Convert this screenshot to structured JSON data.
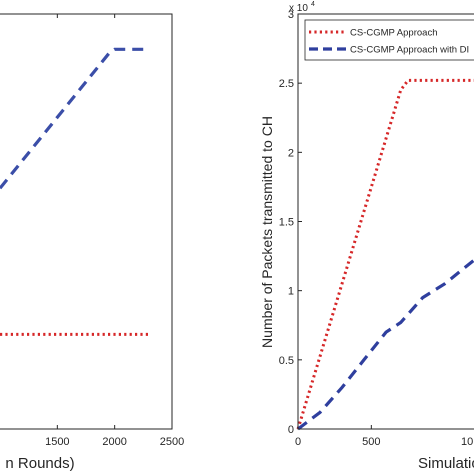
{
  "chart_data": [
    {
      "type": "line",
      "xlabel": "n Rounds)",
      "ylabel": "",
      "xlim": [
        1000,
        2500
      ],
      "ylim": [
        0,
        1
      ],
      "xticks": [
        1500,
        2000,
        2500
      ],
      "grid": false,
      "series": [
        {
          "color": "#3b4ea8",
          "style": "dashed",
          "x": [
            1000,
            1950,
            2000,
            2300
          ],
          "y": [
            0.58,
            0.905,
            0.915,
            0.915
          ]
        },
        {
          "color": "#d62728",
          "style": "dotted",
          "x": [
            1000,
            2300
          ],
          "y": [
            0.228,
            0.228
          ]
        }
      ]
    },
    {
      "type": "line",
      "xlabel": "Simulatio",
      "ylabel": "Number of Packets transmitted to CH",
      "xlim": [
        0,
        1200
      ],
      "ylim": [
        0,
        3
      ],
      "yticks": [
        0,
        0.5,
        1,
        1.5,
        2,
        2.5,
        3
      ],
      "yticklabels": [
        "0",
        "0.5",
        "1",
        "1.5",
        "2",
        "2.5",
        "3"
      ],
      "xticks": [
        0,
        500
      ],
      "xticklabels": [
        "0",
        "500"
      ],
      "extra_xtick_label": "10",
      "y_exponent_base": "x 10",
      "y_exponent_power": "4",
      "legend_position": "top-right",
      "grid": false,
      "series": [
        {
          "name": "CS-CGMP Approach",
          "color": "#d62728",
          "style": "dotted",
          "x": [
            0,
            700,
            750,
            1200
          ],
          "y": [
            0,
            2.45,
            2.52,
            2.52
          ]
        },
        {
          "name": "CS-CGMP Approach with DI",
          "color": "#2f3f9e",
          "style": "dashed",
          "x": [
            0,
            150,
            300,
            450,
            600,
            700,
            850,
            1000,
            1200
          ],
          "y": [
            0,
            0.12,
            0.3,
            0.5,
            0.7,
            0.77,
            0.95,
            1.05,
            1.22
          ]
        }
      ]
    }
  ]
}
